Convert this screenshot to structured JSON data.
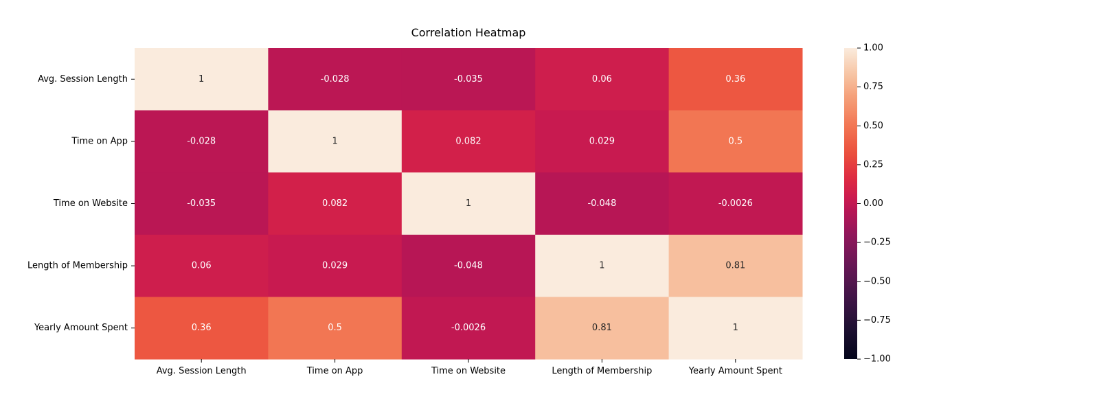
{
  "chart_data": {
    "type": "heatmap",
    "title": "Correlation Heatmap",
    "xlabel": "",
    "ylabel": "",
    "rows": [
      "Avg. Session Length",
      "Time on App",
      "Time on Website",
      "Length of Membership",
      "Yearly Amount Spent"
    ],
    "columns": [
      "Avg. Session Length",
      "Time on App",
      "Time on Website",
      "Length of Membership",
      "Yearly Amount Spent"
    ],
    "values": [
      [
        1,
        -0.028,
        -0.035,
        0.06,
        0.36
      ],
      [
        -0.028,
        1,
        0.082,
        0.029,
        0.5
      ],
      [
        -0.035,
        0.082,
        1,
        -0.048,
        -0.0026
      ],
      [
        0.06,
        0.029,
        -0.048,
        1,
        0.81
      ],
      [
        0.36,
        0.5,
        -0.0026,
        0.81,
        1
      ]
    ],
    "cell_labels": [
      [
        "1",
        "-0.028",
        "-0.035",
        "0.06",
        "0.36"
      ],
      [
        "-0.028",
        "1",
        "0.082",
        "0.029",
        "0.5"
      ],
      [
        "-0.035",
        "0.082",
        "1",
        "-0.048",
        "-0.0026"
      ],
      [
        "0.06",
        "0.029",
        "-0.048",
        "1",
        "0.81"
      ],
      [
        "0.36",
        "0.5",
        "-0.0026",
        "0.81",
        "1"
      ]
    ],
    "colorbar": {
      "range": [
        -1.0,
        1.0
      ],
      "ticks": [
        1.0,
        0.75,
        0.5,
        0.25,
        0.0,
        -0.25,
        -0.5,
        -0.75,
        -1.0
      ],
      "tick_labels": [
        "1.00",
        "0.75",
        "0.50",
        "0.25",
        "0.00",
        "−0.25",
        "−0.50",
        "−0.75",
        "−1.00"
      ]
    },
    "colormap": "rocket",
    "grid": false,
    "legend": "colorbar-right"
  }
}
